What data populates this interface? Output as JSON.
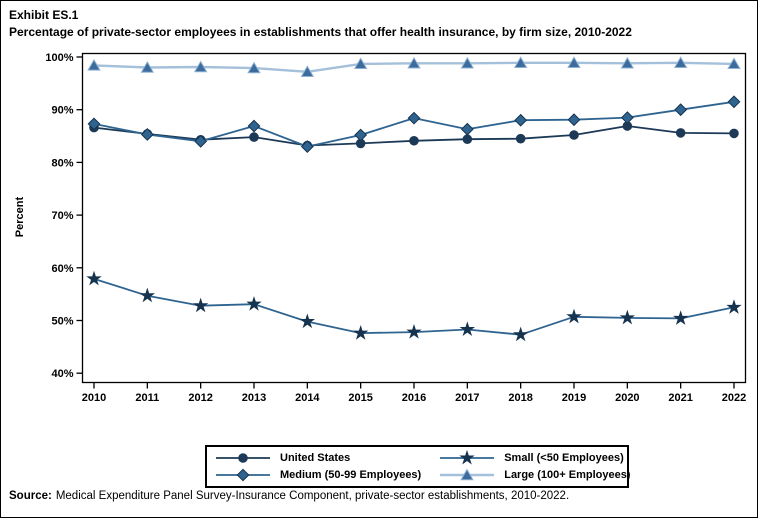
{
  "chart_data": {
    "type": "line",
    "exhibit_label": "Exhibit ES.1",
    "title": "Percentage of private-sector employees in establishments that offer health insurance, by firm size, 2010-2022",
    "xlabel": "",
    "ylabel": "Percent",
    "ylim": [
      40,
      100
    ],
    "yticks": [
      40,
      50,
      60,
      70,
      80,
      90,
      100
    ],
    "ytick_suffix": "%",
    "grid": false,
    "legend_position": "bottom",
    "categories": [
      "2010",
      "2011",
      "2012",
      "2013",
      "2014",
      "2015",
      "2016",
      "2017",
      "2018",
      "2019",
      "2020",
      "2021",
      "2022"
    ],
    "series": [
      {
        "name": "United States",
        "marker": "circle",
        "line_color": "#1C3A57",
        "marker_color": "#1C3A57",
        "marker_outline": "#1C3A57",
        "values": [
          86.6,
          85.4,
          84.3,
          84.8,
          83.2,
          83.6,
          84.1,
          84.4,
          84.5,
          85.2,
          86.9,
          85.6,
          85.5
        ]
      },
      {
        "name": "Small (<50 Employees)",
        "marker": "star",
        "line_color": "#2F6490",
        "marker_color": "#16334F",
        "marker_outline": "#16334F",
        "values": [
          57.9,
          54.7,
          52.8,
          53.1,
          49.8,
          47.6,
          47.8,
          48.3,
          47.3,
          50.7,
          50.5,
          50.4,
          52.5
        ]
      },
      {
        "name": "Medium (50-99 Employees)",
        "marker": "diamond",
        "line_color": "#2F6490",
        "marker_color": "#2F6490",
        "marker_outline": "#16334F",
        "values": [
          87.3,
          85.3,
          84.0,
          86.9,
          83.0,
          85.2,
          88.4,
          86.3,
          88.0,
          88.1,
          88.5,
          90.0,
          91.5
        ]
      },
      {
        "name": "Large (100+ Employees)",
        "marker": "triangle",
        "line_color": "#A5C0DA",
        "marker_color": "#3C6C9D",
        "marker_outline": "#8FB2D1",
        "values": [
          98.4,
          98.0,
          98.1,
          97.9,
          97.2,
          98.7,
          98.8,
          98.8,
          98.9,
          98.9,
          98.8,
          98.9,
          98.7
        ]
      }
    ]
  },
  "source": {
    "label": "Source:",
    "text": "Medical Expenditure Panel Survey-Insurance Component, private-sector establishments, 2010-2022."
  }
}
